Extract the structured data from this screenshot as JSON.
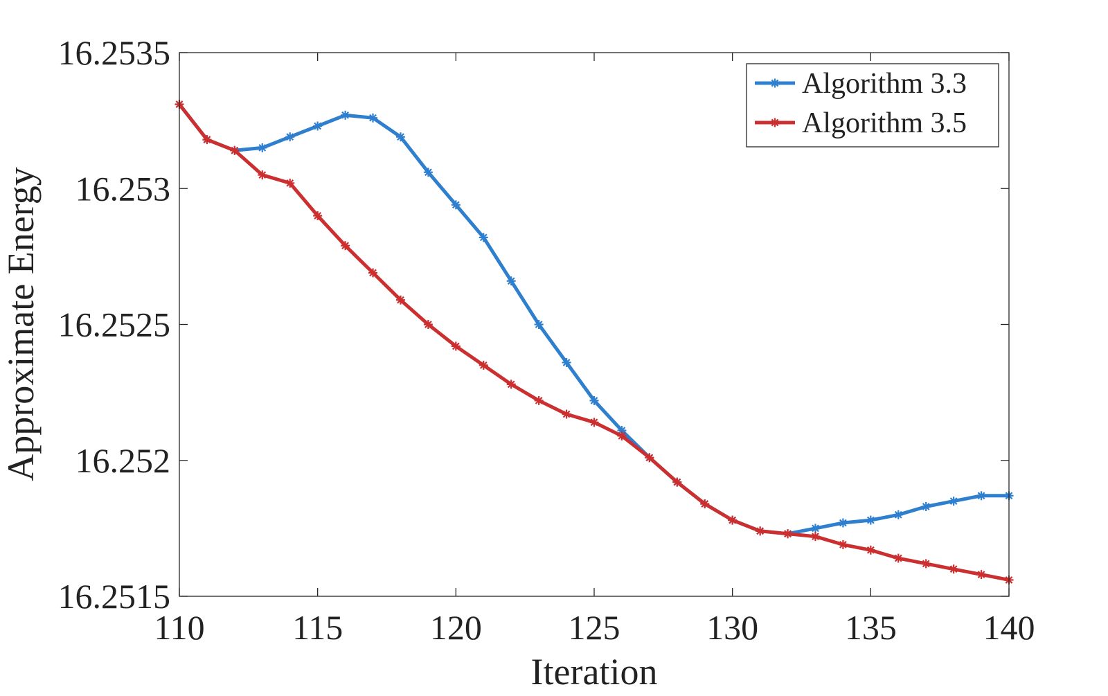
{
  "chart_data": {
    "type": "line",
    "title": "",
    "xlabel": "Iteration",
    "ylabel": "Approximate Energy",
    "xlim": [
      110,
      140
    ],
    "ylim": [
      16.2515,
      16.2535
    ],
    "xticks": [
      110,
      115,
      120,
      125,
      130,
      135,
      140
    ],
    "xtick_labels": [
      "110",
      "115",
      "120",
      "125",
      "130",
      "135",
      "140"
    ],
    "yticks": [
      16.2515,
      16.252,
      16.2525,
      16.253,
      16.2535
    ],
    "ytick_labels": [
      "16.2515",
      "16.252",
      "16.2525",
      "16.253",
      "16.2535"
    ],
    "grid": false,
    "legend_position": "top-right",
    "x": [
      110,
      111,
      112,
      113,
      114,
      115,
      116,
      117,
      118,
      119,
      120,
      121,
      122,
      123,
      124,
      125,
      126,
      127,
      128,
      129,
      130,
      131,
      132,
      133,
      134,
      135,
      136,
      137,
      138,
      139,
      140
    ],
    "series": [
      {
        "name": "Algorithm 3.3",
        "color": "#2f7fcf",
        "marker": "asterisk",
        "values": [
          16.25331,
          16.25318,
          16.25314,
          16.25315,
          16.25319,
          16.25323,
          16.25327,
          16.25326,
          16.25319,
          16.25306,
          16.25294,
          16.25282,
          16.25266,
          16.2525,
          16.25236,
          16.25222,
          16.25211,
          16.25201,
          16.25192,
          16.25184,
          16.25178,
          16.25174,
          16.25173,
          16.25175,
          16.25177,
          16.25178,
          16.2518,
          16.25183,
          16.25185,
          16.25187,
          16.25187
        ]
      },
      {
        "name": "Algorithm 3.5",
        "color": "#cc2f2f",
        "marker": "asterisk",
        "values": [
          16.25331,
          16.25318,
          16.25314,
          16.25305,
          16.25302,
          16.2529,
          16.25279,
          16.25269,
          16.25259,
          16.2525,
          16.25242,
          16.25235,
          16.25228,
          16.25222,
          16.25217,
          16.25214,
          16.25209,
          16.25201,
          16.25192,
          16.25184,
          16.25178,
          16.25174,
          16.25173,
          16.25172,
          16.25169,
          16.25167,
          16.25164,
          16.25162,
          16.2516,
          16.25158,
          16.25156
        ]
      }
    ]
  }
}
